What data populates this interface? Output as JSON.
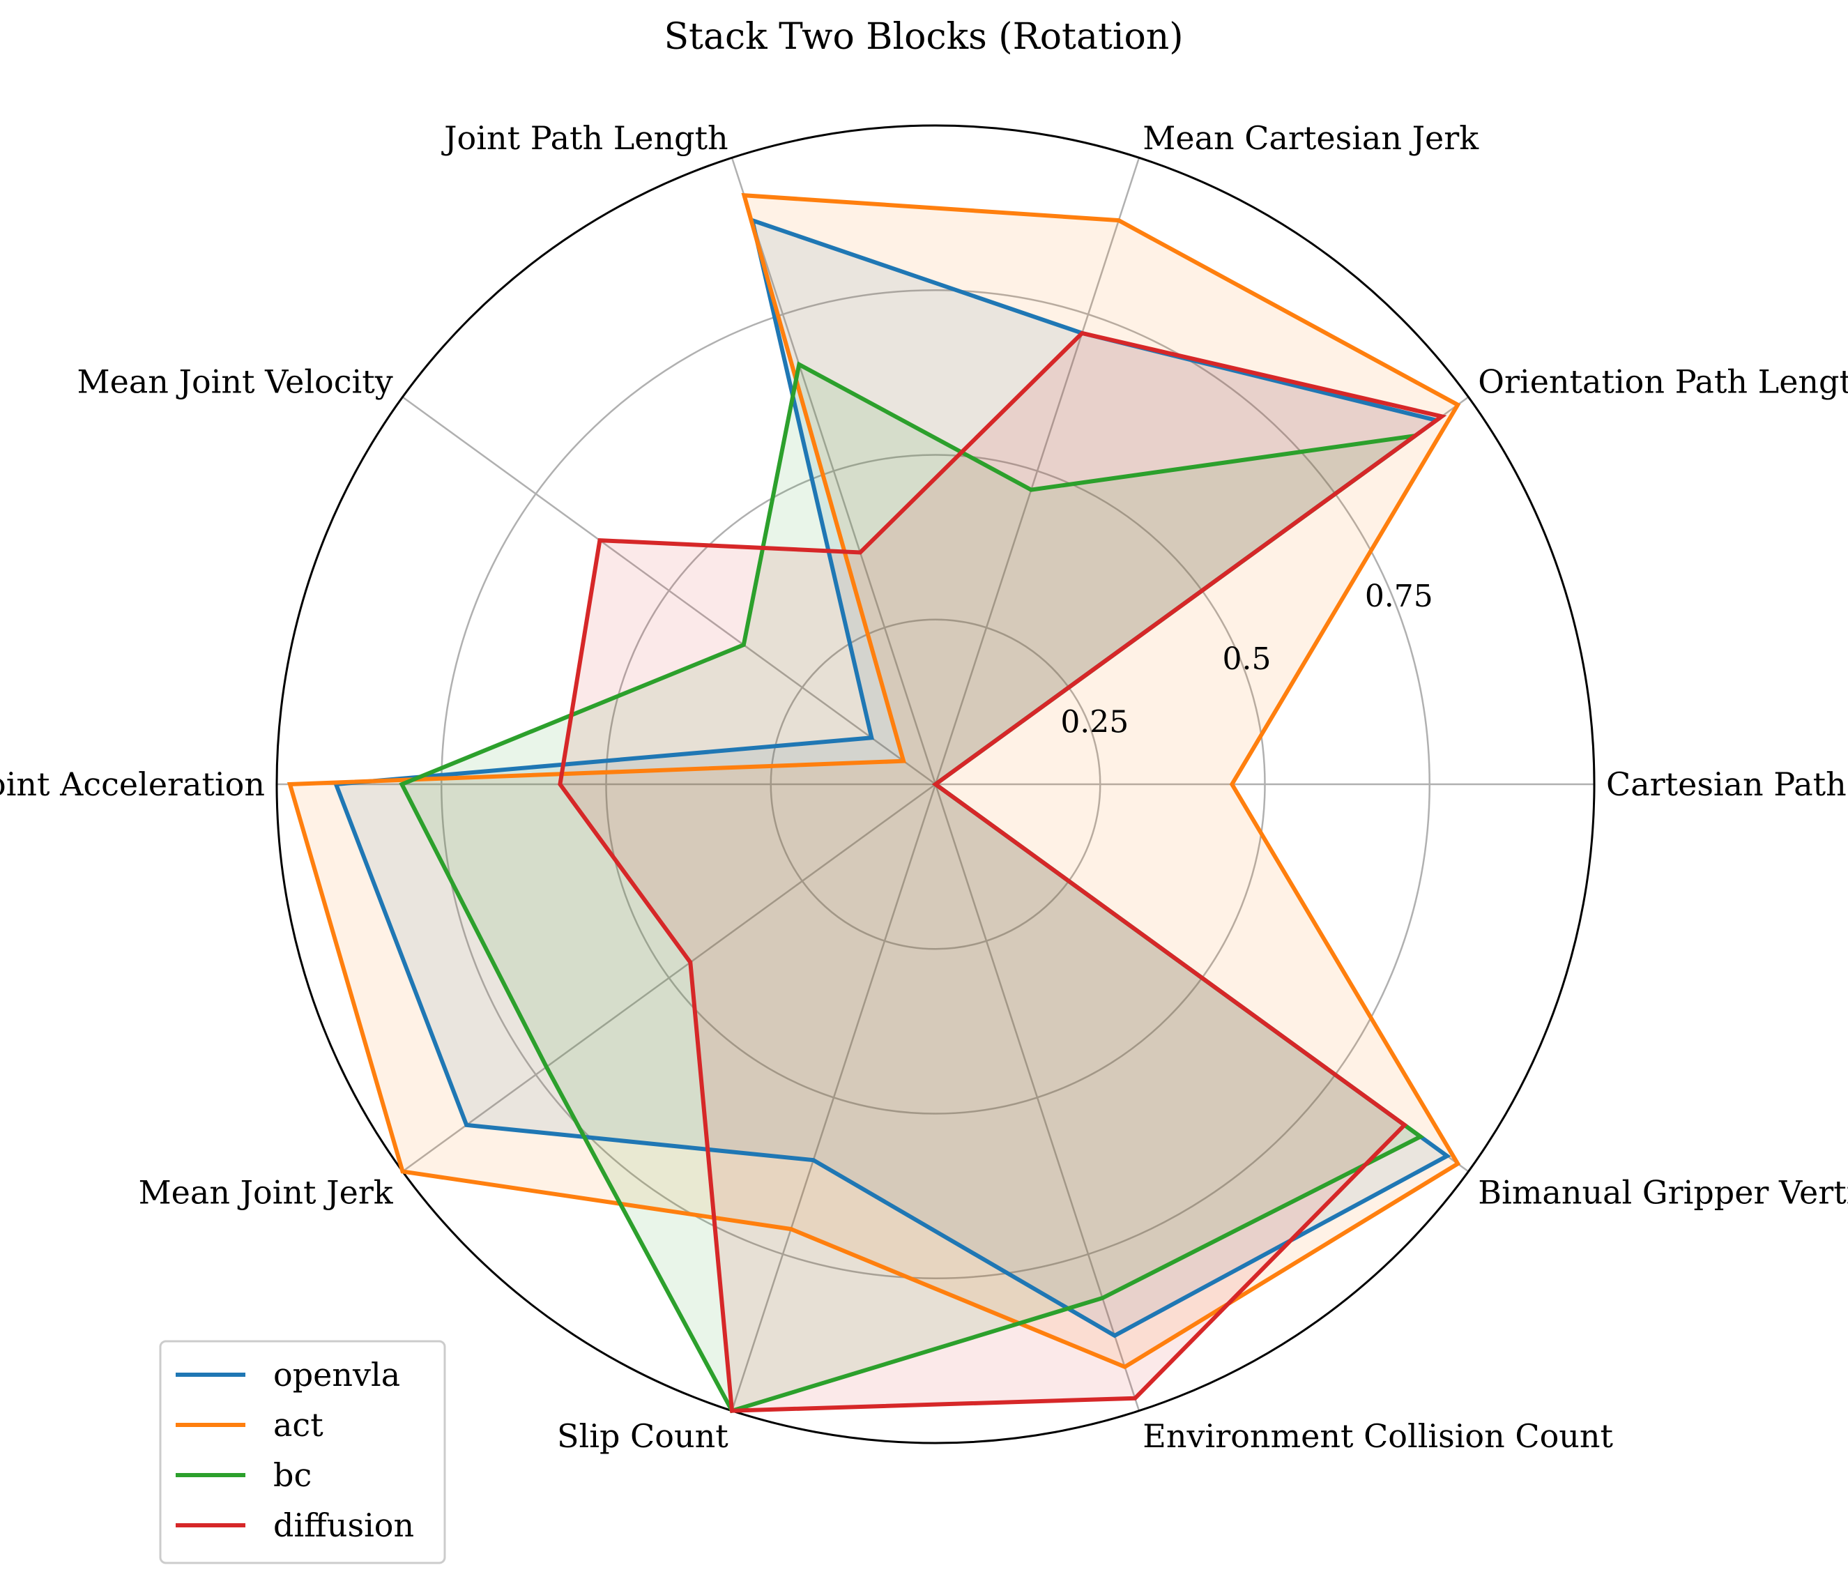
{
  "chart_data": {
    "type": "radar",
    "title": "Stack Two Blocks (Rotation)",
    "axes": [
      "Cartesian Path Length",
      "Orientation Path Length",
      "Mean Cartesian Jerk",
      "Joint Path Length",
      "Mean Joint Velocity",
      "Mean Joint Acceleration",
      "Mean Joint Jerk",
      "Slip Count",
      "Environment Collision Count",
      "Bimanual Gripper Vertical Difference"
    ],
    "radial_ticks": [
      "0.25",
      "0.5",
      "0.75"
    ],
    "radial_tick_values": [
      0.25,
      0.5,
      0.75
    ],
    "rlim": [
      0,
      1.0
    ],
    "grid": true,
    "legend_position": "lower-left",
    "series": [
      {
        "name": "openvla",
        "color": "#1f77b4",
        "values": [
          0.0,
          0.94,
          0.72,
          0.9,
          0.12,
          0.91,
          0.88,
          0.6,
          0.88,
          0.96
        ]
      },
      {
        "name": "act",
        "color": "#ff7f0e",
        "values": [
          0.45,
          0.98,
          0.9,
          0.94,
          0.06,
          0.98,
          1.0,
          0.71,
          0.93,
          0.98
        ]
      },
      {
        "name": "bc",
        "color": "#2ca02c",
        "values": [
          0.0,
          0.9,
          0.47,
          0.67,
          0.36,
          0.81,
          0.73,
          1.0,
          0.82,
          0.91
        ]
      },
      {
        "name": "diffusion",
        "color": "#d62728",
        "values": [
          0.0,
          0.95,
          0.72,
          0.37,
          0.63,
          0.57,
          0.46,
          1.0,
          0.98,
          0.88
        ]
      }
    ]
  }
}
